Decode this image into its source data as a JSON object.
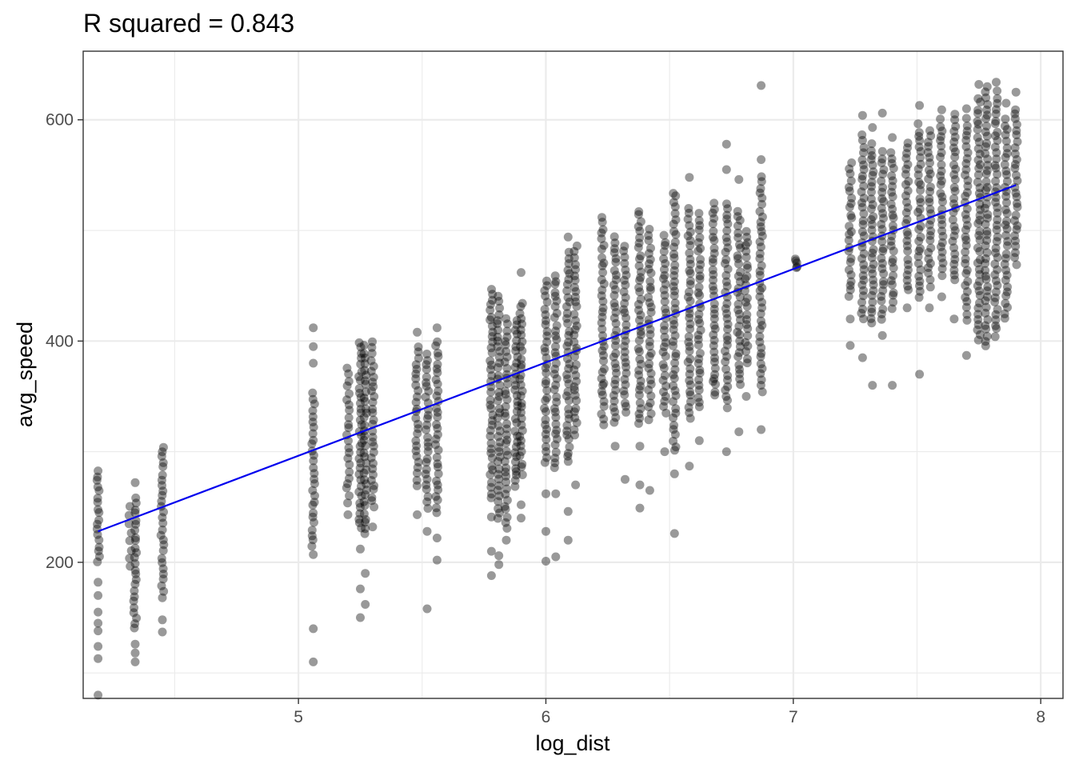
{
  "chart_data": {
    "type": "scatter",
    "title": "R squared = 0.843",
    "xlabel": "log_dist",
    "ylabel": "avg_speed",
    "xlim": [
      4.13,
      8.09
    ],
    "ylim": [
      77,
      662
    ],
    "x_ticks": [
      5,
      6,
      7,
      8
    ],
    "x_tick_labels": [
      "5",
      "6",
      "7",
      "8"
    ],
    "y_ticks": [
      200,
      400,
      600
    ],
    "y_tick_labels": [
      "200",
      "400",
      "600"
    ],
    "grid": true,
    "legend": "none",
    "colors": {
      "points": "#000000",
      "fit_line": "#0000ee",
      "grid": "#ebebeb",
      "panel_border": "#333333"
    },
    "point_opacity": 0.4,
    "fit_line": {
      "x": [
        4.19,
        7.9
      ],
      "y": [
        228,
        541
      ]
    },
    "clusters": [
      {
        "x": 4.19,
        "y_min": 200,
        "y_max": 283,
        "density": 1.0,
        "outliers": [
          80,
          113,
          124,
          138,
          145,
          155,
          170,
          182
        ]
      },
      {
        "x": 4.32,
        "y_min": 195,
        "y_max": 250,
        "density": 0.6,
        "outliers": []
      },
      {
        "x": 4.34,
        "y_min": 140,
        "y_max": 258,
        "density": 1.0,
        "outliers": [
          110,
          118,
          126,
          272
        ]
      },
      {
        "x": 4.45,
        "y_min": 175,
        "y_max": 305,
        "density": 1.0,
        "outliers": [
          137,
          148,
          168
        ]
      },
      {
        "x": 5.06,
        "y_min": 215,
        "y_max": 352,
        "density": 1.0,
        "outliers": [
          110,
          140,
          207,
          380,
          395,
          412
        ]
      },
      {
        "x": 5.2,
        "y_min": 255,
        "y_max": 375,
        "density": 0.9,
        "outliers": [
          243
        ]
      },
      {
        "x": 5.25,
        "y_min": 230,
        "y_max": 398,
        "density": 1.0,
        "outliers": [
          150,
          176,
          212
        ]
      },
      {
        "x": 5.27,
        "y_min": 225,
        "y_max": 395,
        "density": 1.0,
        "outliers": [
          162,
          190
        ]
      },
      {
        "x": 5.3,
        "y_min": 250,
        "y_max": 398,
        "density": 1.0,
        "outliers": [
          232
        ]
      },
      {
        "x": 5.48,
        "y_min": 270,
        "y_max": 395,
        "density": 1.0,
        "outliers": [
          243,
          408
        ]
      },
      {
        "x": 5.52,
        "y_min": 250,
        "y_max": 388,
        "density": 1.0,
        "outliers": [
          158,
          228
        ]
      },
      {
        "x": 5.56,
        "y_min": 245,
        "y_max": 400,
        "density": 1.0,
        "outliers": [
          202,
          222,
          412
        ]
      },
      {
        "x": 5.78,
        "y_min": 258,
        "y_max": 448,
        "density": 1.0,
        "outliers": [
          188,
          210,
          241
        ]
      },
      {
        "x": 5.81,
        "y_min": 240,
        "y_max": 440,
        "density": 1.0,
        "outliers": [
          198,
          206
        ]
      },
      {
        "x": 5.84,
        "y_min": 232,
        "y_max": 420,
        "density": 1.0,
        "outliers": [
          220
        ]
      },
      {
        "x": 5.88,
        "y_min": 270,
        "y_max": 420,
        "density": 1.0,
        "outliers": [
          282
        ]
      },
      {
        "x": 5.9,
        "y_min": 280,
        "y_max": 435,
        "density": 1.0,
        "outliers": [
          240,
          252,
          462
        ]
      },
      {
        "x": 6.0,
        "y_min": 290,
        "y_max": 455,
        "density": 1.0,
        "outliers": [
          201,
          228,
          262
        ]
      },
      {
        "x": 6.04,
        "y_min": 285,
        "y_max": 460,
        "density": 1.0,
        "outliers": [
          205,
          262
        ]
      },
      {
        "x": 6.09,
        "y_min": 290,
        "y_max": 480,
        "density": 1.0,
        "outliers": [
          220,
          246,
          494
        ]
      },
      {
        "x": 6.12,
        "y_min": 315,
        "y_max": 485,
        "density": 1.0,
        "outliers": [
          270
        ]
      },
      {
        "x": 6.23,
        "y_min": 325,
        "y_max": 512,
        "density": 1.0,
        "outliers": [
          360
        ]
      },
      {
        "x": 6.28,
        "y_min": 325,
        "y_max": 495,
        "density": 1.0,
        "outliers": [
          305
        ]
      },
      {
        "x": 6.32,
        "y_min": 335,
        "y_max": 485,
        "density": 1.0,
        "outliers": [
          275
        ]
      },
      {
        "x": 6.38,
        "y_min": 325,
        "y_max": 518,
        "density": 1.0,
        "outliers": [
          249,
          270,
          305
        ]
      },
      {
        "x": 6.42,
        "y_min": 330,
        "y_max": 500,
        "density": 1.0,
        "outliers": [
          265
        ]
      },
      {
        "x": 6.48,
        "y_min": 335,
        "y_max": 495,
        "density": 1.0,
        "outliers": [
          300
        ]
      },
      {
        "x": 6.52,
        "y_min": 300,
        "y_max": 535,
        "density": 1.0,
        "outliers": [
          226,
          280
        ]
      },
      {
        "x": 6.58,
        "y_min": 330,
        "y_max": 520,
        "density": 1.0,
        "outliers": [
          287,
          548
        ]
      },
      {
        "x": 6.62,
        "y_min": 340,
        "y_max": 515,
        "density": 1.0,
        "outliers": [
          310
        ]
      },
      {
        "x": 6.68,
        "y_min": 350,
        "y_max": 525,
        "density": 1.0,
        "outliers": [
          366
        ]
      },
      {
        "x": 6.73,
        "y_min": 340,
        "y_max": 525,
        "density": 1.0,
        "outliers": [
          300,
          555,
          578
        ]
      },
      {
        "x": 6.78,
        "y_min": 360,
        "y_max": 518,
        "density": 1.0,
        "outliers": [
          318,
          546
        ]
      },
      {
        "x": 6.81,
        "y_min": 380,
        "y_max": 500,
        "density": 1.0,
        "outliers": [
          350
        ]
      },
      {
        "x": 6.87,
        "y_min": 355,
        "y_max": 548,
        "density": 1.0,
        "outliers": [
          320,
          564,
          631
        ]
      },
      {
        "x": 7.01,
        "y_min": 465,
        "y_max": 475,
        "density": 0.4,
        "outliers": []
      },
      {
        "x": 7.23,
        "y_min": 440,
        "y_max": 560,
        "density": 1.0,
        "outliers": [
          396,
          420
        ]
      },
      {
        "x": 7.28,
        "y_min": 420,
        "y_max": 585,
        "density": 1.0,
        "outliers": [
          385,
          604
        ]
      },
      {
        "x": 7.32,
        "y_min": 415,
        "y_max": 578,
        "density": 1.0,
        "outliers": [
          360,
          593
        ]
      },
      {
        "x": 7.36,
        "y_min": 420,
        "y_max": 570,
        "density": 1.0,
        "outliers": [
          405,
          606
        ]
      },
      {
        "x": 7.4,
        "y_min": 430,
        "y_max": 570,
        "density": 1.0,
        "outliers": [
          360,
          584
        ]
      },
      {
        "x": 7.46,
        "y_min": 445,
        "y_max": 580,
        "density": 1.0,
        "outliers": [
          430
        ]
      },
      {
        "x": 7.51,
        "y_min": 440,
        "y_max": 595,
        "density": 1.0,
        "outliers": [
          370,
          613
        ]
      },
      {
        "x": 7.55,
        "y_min": 450,
        "y_max": 590,
        "density": 1.0,
        "outliers": [
          430
        ]
      },
      {
        "x": 7.6,
        "y_min": 460,
        "y_max": 600,
        "density": 1.0,
        "outliers": [
          440,
          609
        ]
      },
      {
        "x": 7.65,
        "y_min": 455,
        "y_max": 605,
        "density": 1.0,
        "outliers": [
          420
        ]
      },
      {
        "x": 7.7,
        "y_min": 420,
        "y_max": 600,
        "density": 1.0,
        "outliers": [
          387,
          610
        ]
      },
      {
        "x": 7.75,
        "y_min": 400,
        "y_max": 620,
        "density": 1.0,
        "outliers": [
          632
        ]
      },
      {
        "x": 7.78,
        "y_min": 395,
        "y_max": 630,
        "density": 1.0,
        "outliers": []
      },
      {
        "x": 7.82,
        "y_min": 405,
        "y_max": 625,
        "density": 1.0,
        "outliers": [
          634
        ]
      },
      {
        "x": 7.86,
        "y_min": 420,
        "y_max": 600,
        "density": 1.0,
        "outliers": [
          615
        ]
      },
      {
        "x": 7.9,
        "y_min": 470,
        "y_max": 610,
        "density": 1.0,
        "outliers": [
          625
        ]
      }
    ]
  }
}
